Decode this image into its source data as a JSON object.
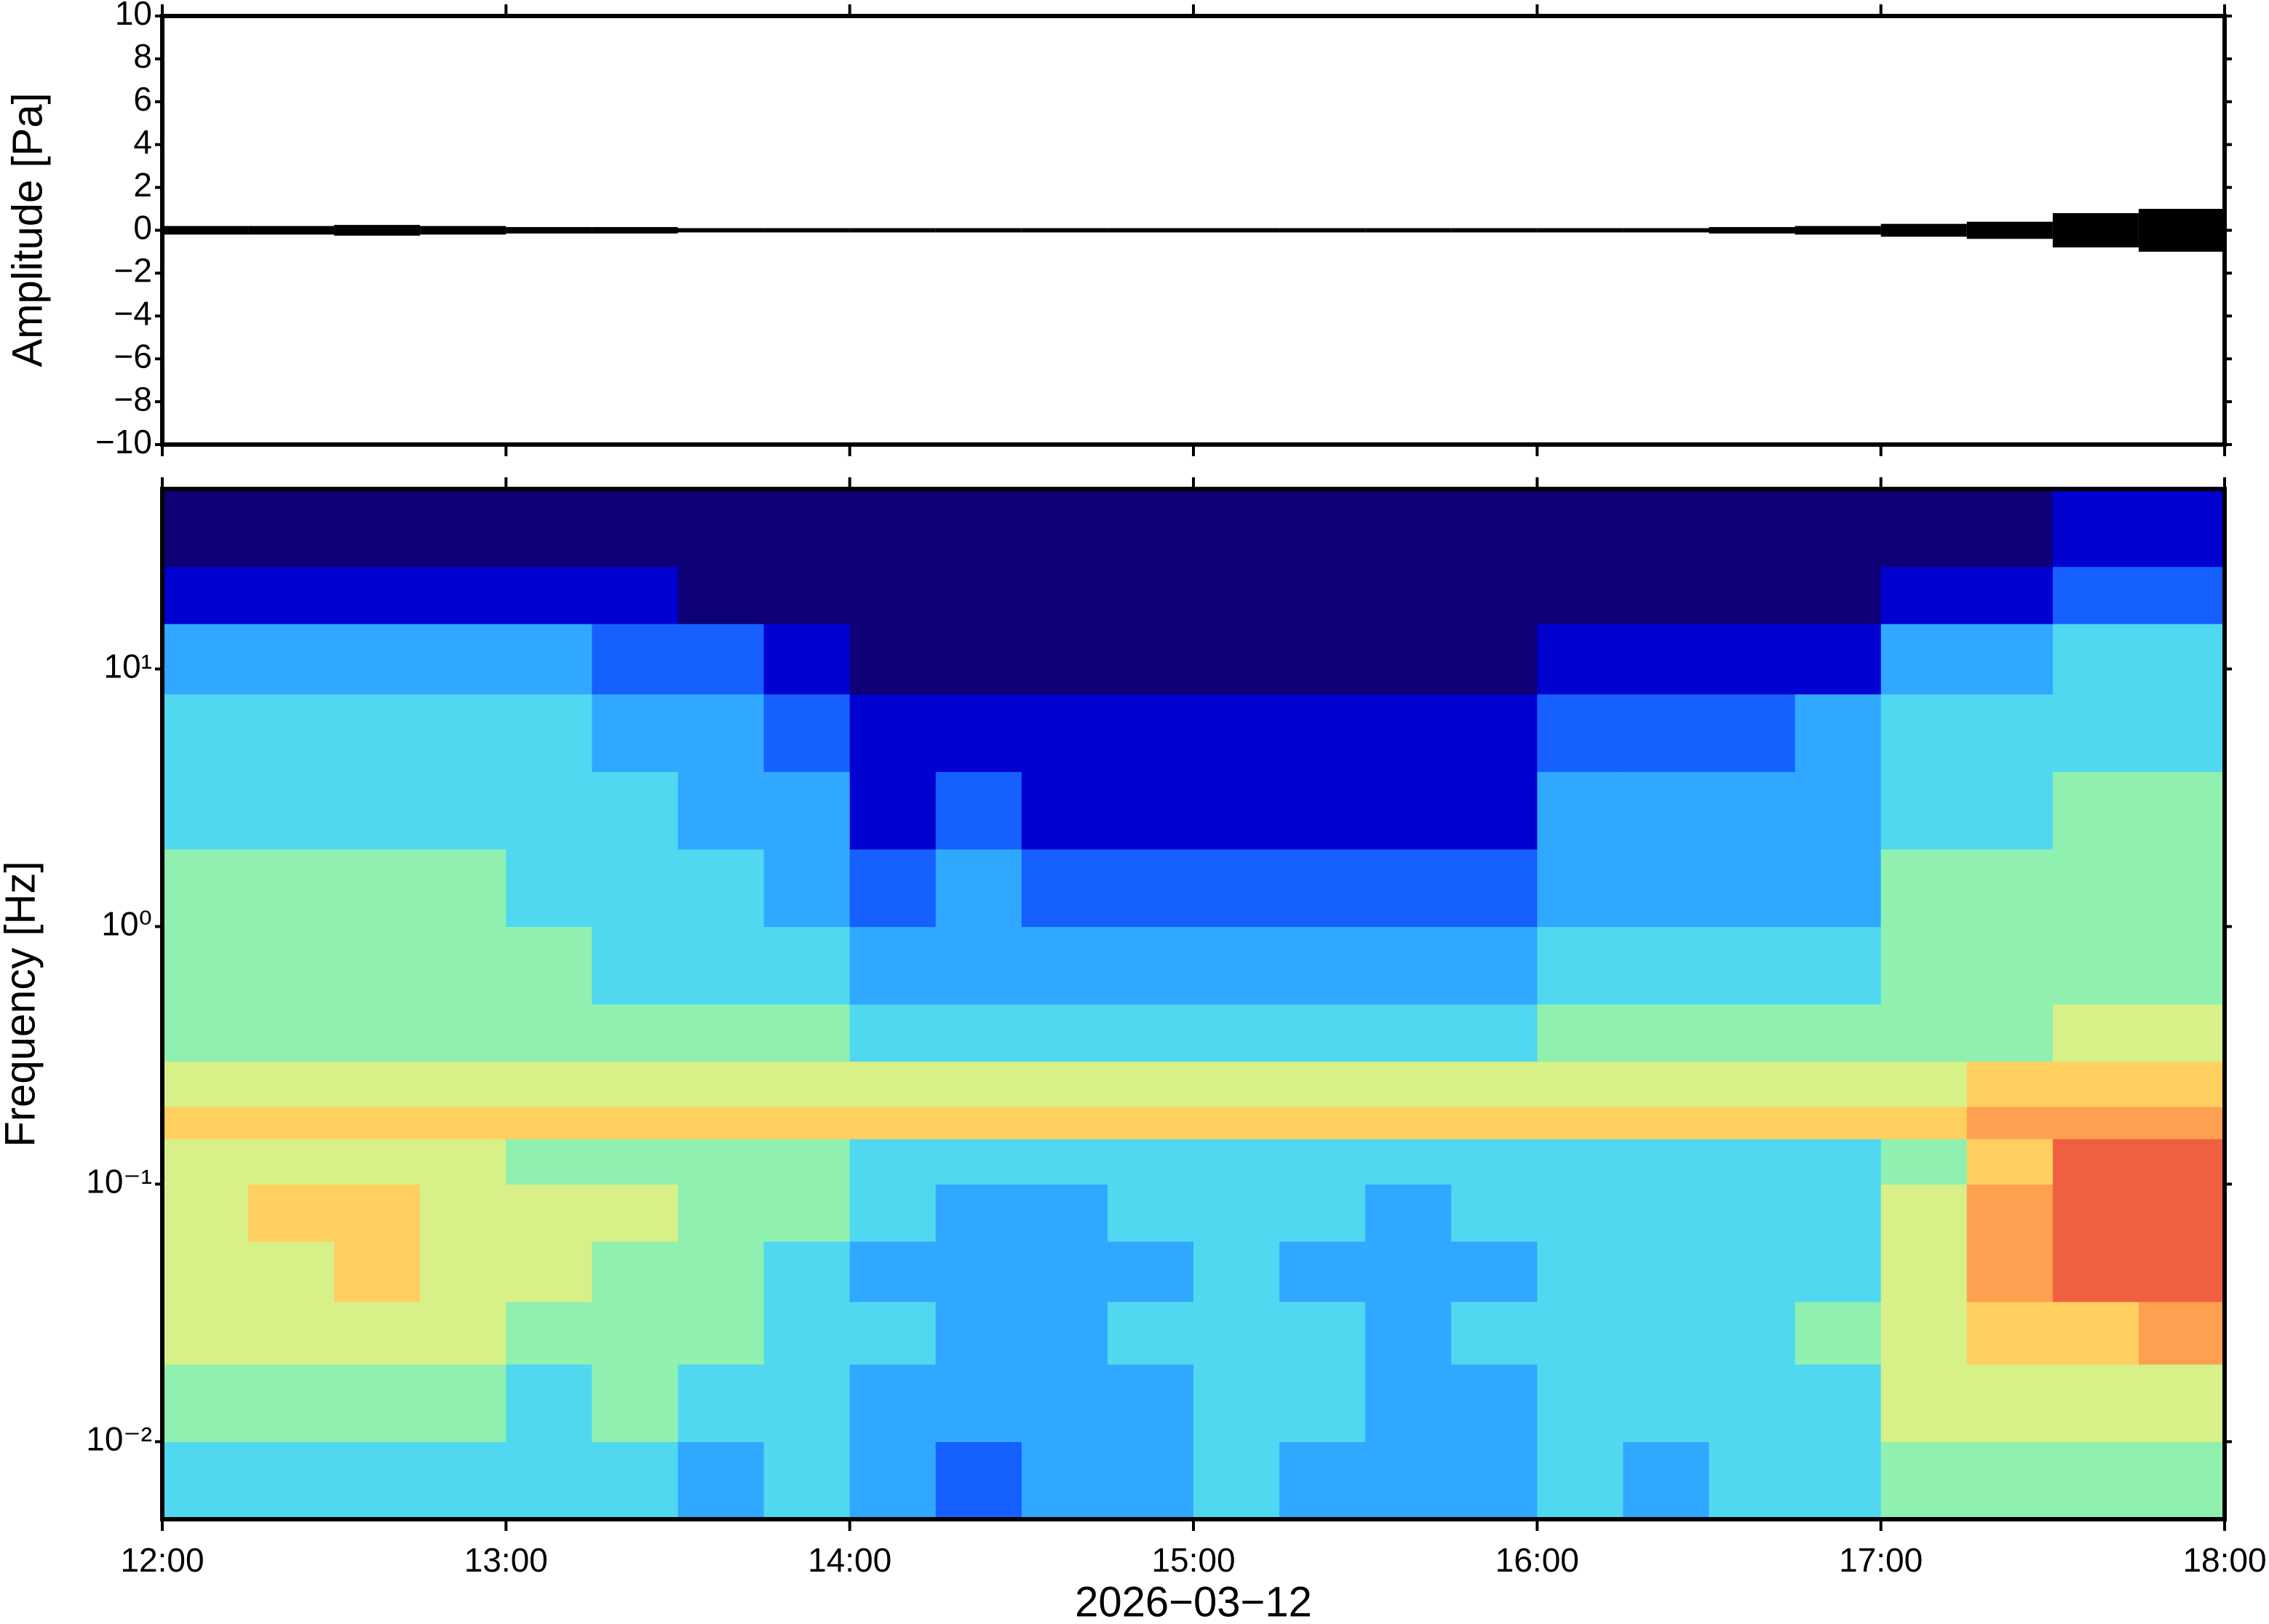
{
  "chart_data": [
    {
      "type": "envelope",
      "ylabel": "Amplitude [Pa]",
      "ylim": [
        -10,
        10
      ],
      "yticks": [
        {
          "value": -10,
          "label": "−10"
        },
        {
          "value": -8,
          "label": "−8"
        },
        {
          "value": -6,
          "label": "−6"
        },
        {
          "value": -4,
          "label": "−4"
        },
        {
          "value": -2,
          "label": "−2"
        },
        0,
        2,
        4,
        6,
        8,
        10
      ],
      "color": "#000000",
      "values": [
        0.2,
        0.2,
        0.25,
        0.2,
        0.15,
        0.15,
        0.1,
        0.1,
        0.1,
        0.1,
        0.1,
        0.1,
        0.1,
        0.1,
        0.1,
        0.1,
        0.1,
        0.1,
        0.15,
        0.2,
        0.3,
        0.4,
        0.8,
        1.0
      ]
    },
    {
      "type": "heatmap",
      "ylabel": "Frequency [Hz]",
      "xlabel": "2026−03−12",
      "xlim": [
        12,
        18
      ],
      "xticks": [
        {
          "value": 12,
          "label": "12:00"
        },
        {
          "value": 13,
          "label": "13:00"
        },
        {
          "value": 14,
          "label": "14:00"
        },
        {
          "value": 15,
          "label": "15:00"
        },
        {
          "value": 16,
          "label": "16:00"
        },
        {
          "value": 17,
          "label": "17:00"
        },
        {
          "value": 18,
          "label": "18:00"
        }
      ],
      "ylim": [
        0.005,
        50
      ],
      "log_y": true,
      "yticks": [
        {
          "value": 0.01,
          "label": "10⁻²"
        },
        {
          "value": 0.1,
          "label": "10⁻¹"
        },
        {
          "value": 1,
          "label": "10⁰"
        },
        {
          "value": 10,
          "label": "10¹"
        }
      ],
      "time_bins": [
        12,
        12.25,
        12.5,
        12.75,
        13,
        13.25,
        13.5,
        13.75,
        14,
        14.25,
        14.5,
        14.75,
        15,
        15.25,
        15.5,
        15.75,
        16,
        16.25,
        16.5,
        16.75,
        17,
        17.25,
        17.5,
        17.75,
        18
      ],
      "freq_bins": [
        0.005,
        0.01,
        0.02,
        0.035,
        0.06,
        0.1,
        0.15,
        0.2,
        0.3,
        0.5,
        1,
        2,
        4,
        8,
        15,
        25,
        50
      ],
      "clim": [
        0,
        1
      ],
      "colormap": [
        "#0e0076",
        "#0000d0",
        "#1560ff",
        "#30a8ff",
        "#50d8f0",
        "#90f0b0",
        "#d8f088",
        "#ffd060",
        "#ffa050",
        "#f06040",
        "#d02020"
      ],
      "values": [
        [
          0.4,
          0.4,
          0.4,
          0.4,
          0.4,
          0.4,
          0.3,
          0.4,
          0.3,
          0.2,
          0.3,
          0.3,
          0.4,
          0.3,
          0.3,
          0.3,
          0.4,
          0.3,
          0.4,
          0.4,
          0.5,
          0.5,
          0.5,
          0.5
        ],
        [
          0.5,
          0.5,
          0.5,
          0.5,
          0.4,
          0.5,
          0.4,
          0.4,
          0.3,
          0.3,
          0.3,
          0.3,
          0.4,
          0.4,
          0.3,
          0.3,
          0.4,
          0.4,
          0.4,
          0.4,
          0.6,
          0.6,
          0.6,
          0.6
        ],
        [
          0.6,
          0.6,
          0.6,
          0.6,
          0.5,
          0.5,
          0.5,
          0.4,
          0.4,
          0.3,
          0.3,
          0.4,
          0.4,
          0.4,
          0.3,
          0.4,
          0.4,
          0.4,
          0.4,
          0.5,
          0.6,
          0.7,
          0.7,
          0.8
        ],
        [
          0.6,
          0.6,
          0.7,
          0.6,
          0.6,
          0.5,
          0.5,
          0.4,
          0.3,
          0.3,
          0.3,
          0.3,
          0.4,
          0.3,
          0.3,
          0.3,
          0.4,
          0.4,
          0.4,
          0.4,
          0.6,
          0.8,
          0.9,
          0.9
        ],
        [
          0.6,
          0.7,
          0.7,
          0.6,
          0.6,
          0.6,
          0.5,
          0.5,
          0.4,
          0.3,
          0.3,
          0.4,
          0.4,
          0.4,
          0.3,
          0.4,
          0.4,
          0.4,
          0.4,
          0.4,
          0.6,
          0.8,
          0.9,
          0.9
        ],
        [
          0.6,
          0.6,
          0.6,
          0.6,
          0.5,
          0.5,
          0.5,
          0.5,
          0.4,
          0.4,
          0.4,
          0.4,
          0.4,
          0.4,
          0.4,
          0.4,
          0.4,
          0.4,
          0.4,
          0.4,
          0.5,
          0.7,
          0.9,
          0.9
        ],
        [
          0.7,
          0.7,
          0.7,
          0.7,
          0.7,
          0.7,
          0.7,
          0.7,
          0.7,
          0.7,
          0.7,
          0.7,
          0.7,
          0.7,
          0.7,
          0.7,
          0.7,
          0.7,
          0.7,
          0.7,
          0.7,
          0.8,
          0.8,
          0.8
        ],
        [
          0.6,
          0.6,
          0.6,
          0.6,
          0.6,
          0.6,
          0.6,
          0.6,
          0.6,
          0.6,
          0.6,
          0.6,
          0.6,
          0.6,
          0.6,
          0.6,
          0.6,
          0.6,
          0.6,
          0.6,
          0.6,
          0.7,
          0.7,
          0.7
        ],
        [
          0.5,
          0.5,
          0.5,
          0.5,
          0.5,
          0.5,
          0.5,
          0.5,
          0.4,
          0.4,
          0.4,
          0.4,
          0.4,
          0.4,
          0.4,
          0.4,
          0.5,
          0.5,
          0.5,
          0.5,
          0.5,
          0.5,
          0.6,
          0.6
        ],
        [
          0.5,
          0.5,
          0.5,
          0.5,
          0.5,
          0.4,
          0.4,
          0.4,
          0.3,
          0.3,
          0.3,
          0.3,
          0.3,
          0.3,
          0.3,
          0.3,
          0.4,
          0.4,
          0.4,
          0.4,
          0.5,
          0.5,
          0.5,
          0.5
        ],
        [
          0.5,
          0.5,
          0.5,
          0.5,
          0.4,
          0.4,
          0.4,
          0.3,
          0.2,
          0.3,
          0.2,
          0.2,
          0.2,
          0.2,
          0.2,
          0.2,
          0.3,
          0.3,
          0.3,
          0.3,
          0.5,
          0.5,
          0.5,
          0.5
        ],
        [
          0.4,
          0.4,
          0.4,
          0.4,
          0.4,
          0.4,
          0.3,
          0.3,
          0.1,
          0.2,
          0.1,
          0.1,
          0.1,
          0.1,
          0.1,
          0.1,
          0.3,
          0.3,
          0.3,
          0.3,
          0.4,
          0.4,
          0.5,
          0.5
        ],
        [
          0.4,
          0.4,
          0.4,
          0.4,
          0.4,
          0.3,
          0.3,
          0.2,
          0.1,
          0.1,
          0.1,
          0.1,
          0.1,
          0.1,
          0.1,
          0.1,
          0.2,
          0.2,
          0.2,
          0.3,
          0.4,
          0.4,
          0.4,
          0.4
        ],
        [
          0.3,
          0.3,
          0.3,
          0.3,
          0.3,
          0.2,
          0.2,
          0.1,
          0,
          0,
          0,
          0,
          0,
          0,
          0,
          0,
          0.1,
          0.1,
          0.1,
          0.1,
          0.3,
          0.3,
          0.4,
          0.4
        ],
        [
          0.1,
          0.1,
          0.1,
          0.1,
          0.1,
          0.1,
          0,
          0,
          0,
          0,
          0,
          0,
          0,
          0,
          0,
          0,
          0,
          0,
          0,
          0,
          0.1,
          0.1,
          0.2,
          0.2
        ],
        [
          0,
          0,
          0,
          0,
          0,
          0,
          0,
          0,
          0,
          0,
          0,
          0,
          0,
          0,
          0,
          0,
          0,
          0,
          0,
          0,
          0,
          0,
          0.1,
          0.1
        ]
      ]
    }
  ]
}
